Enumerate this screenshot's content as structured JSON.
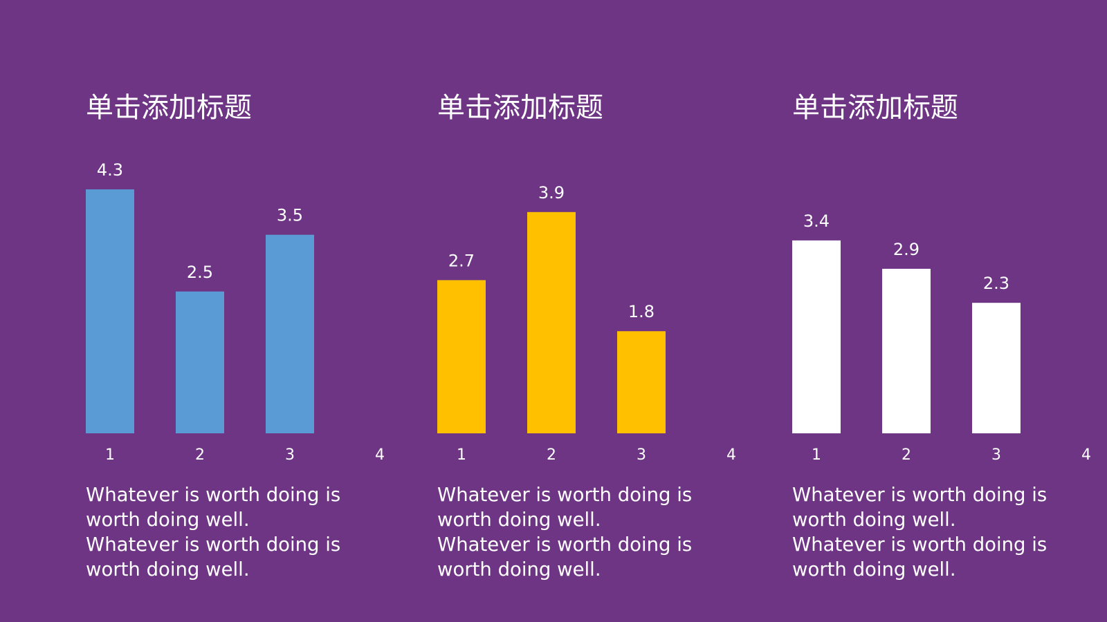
{
  "chart_data": [
    {
      "type": "bar",
      "title": "单击添加标题",
      "categories": [
        "1",
        "2",
        "3",
        "4"
      ],
      "values": [
        4.3,
        2.5,
        3.5,
        null
      ],
      "data_labels": [
        "4.3",
        "2.5",
        "3.5",
        ""
      ],
      "ylim": [
        0,
        4.3
      ],
      "color": "#5b9bd5",
      "grid": false,
      "legend": false,
      "caption": "Whatever is worth doing is worth doing well. Whatever is worth doing is worth doing well."
    },
    {
      "type": "bar",
      "title": "单击添加标题",
      "categories": [
        "1",
        "2",
        "3",
        "4"
      ],
      "values": [
        2.7,
        3.9,
        1.8,
        null
      ],
      "data_labels": [
        "2.7",
        "3.9",
        "1.8",
        ""
      ],
      "ylim": [
        0,
        4.3
      ],
      "color": "#ffc000",
      "grid": false,
      "legend": false,
      "caption": "Whatever is worth doing is worth doing well. Whatever is worth doing is worth doing well."
    },
    {
      "type": "bar",
      "title": "单击添加标题",
      "categories": [
        "1",
        "2",
        "3",
        "4"
      ],
      "values": [
        3.4,
        2.9,
        2.3,
        null
      ],
      "data_labels": [
        "3.4",
        "2.9",
        "2.3",
        ""
      ],
      "ylim": [
        0,
        4.3
      ],
      "color": "#ffffff",
      "grid": false,
      "legend": false,
      "caption": "Whatever is worth doing is worth doing well. Whatever is worth doing is worth doing well."
    }
  ]
}
